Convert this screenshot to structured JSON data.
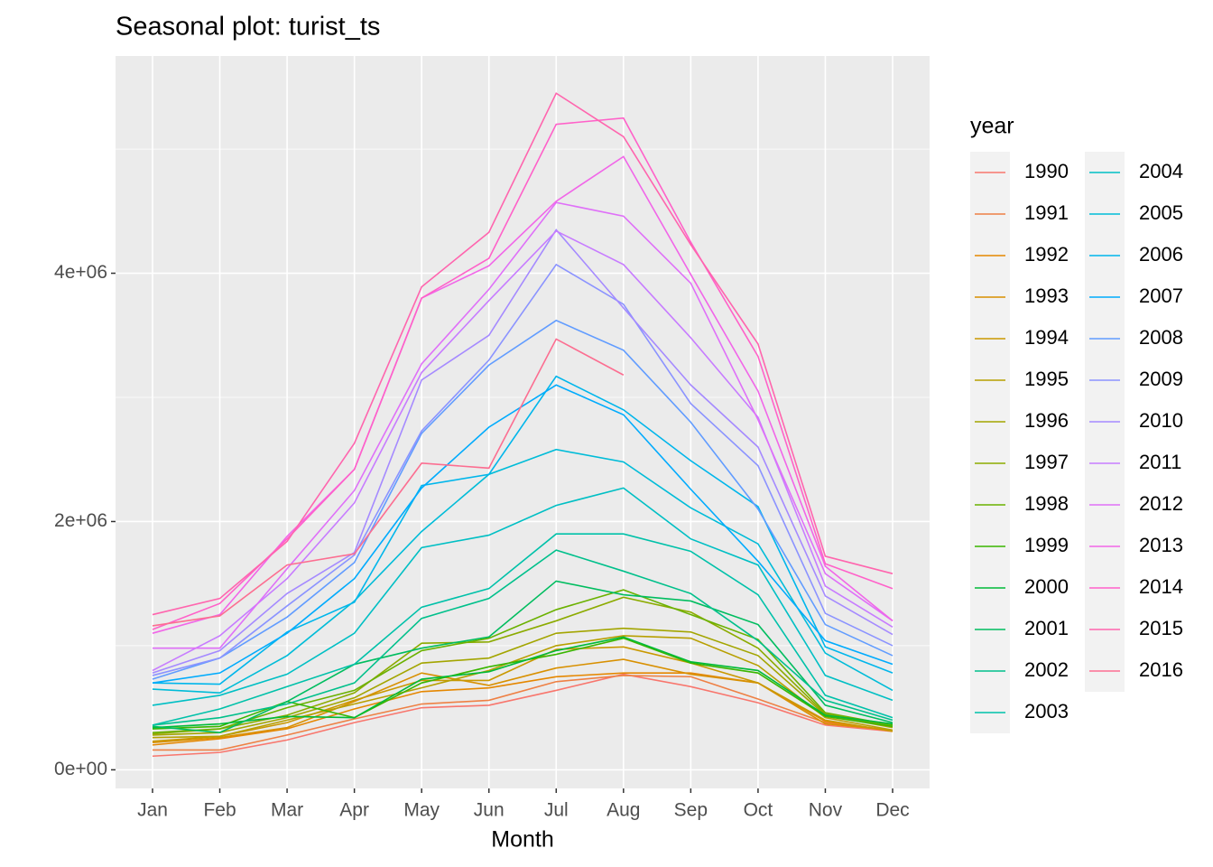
{
  "chart_data": {
    "type": "line",
    "title": "Seasonal plot: turist_ts",
    "x_label": "Month",
    "legend_title": "year",
    "legend": "right",
    "grid": true,
    "categories": [
      "Jan",
      "Feb",
      "Mar",
      "Apr",
      "May",
      "Jun",
      "Jul",
      "Aug",
      "Sep",
      "Oct",
      "Nov",
      "Dec"
    ],
    "ylim": [
      -150000,
      5750000
    ],
    "yticks": [
      {
        "value": 0,
        "label": "0e+00"
      },
      {
        "value": 2000000,
        "label": "2e+06"
      },
      {
        "value": 4000000,
        "label": "4e+06"
      }
    ],
    "yminor": [
      1000000,
      3000000,
      5000000
    ],
    "series": [
      {
        "name": "1990",
        "color": "#F8766D",
        "values": [
          110000.0,
          140000.0,
          240000.0,
          380000.0,
          500000.0,
          520000.0,
          640000.0,
          770000.0,
          670000.0,
          540000.0,
          360000.0,
          310000.0
        ]
      },
      {
        "name": "1991",
        "color": "#EE8044",
        "values": [
          160000.0,
          160000.0,
          280000.0,
          410000.0,
          530000.0,
          560000.0,
          710000.0,
          760000.0,
          750000.0,
          570000.0,
          380000.0,
          320000.0
        ]
      },
      {
        "name": "1992",
        "color": "#E58700",
        "values": [
          200000.0,
          250000.0,
          330000.0,
          490000.0,
          630000.0,
          660000.0,
          750000.0,
          780000.0,
          780000.0,
          700000.0,
          390000.0,
          310000.0
        ]
      },
      {
        "name": "1993",
        "color": "#D89000",
        "values": [
          220000.0,
          260000.0,
          340000.0,
          550000.0,
          780000.0,
          680000.0,
          820000.0,
          890000.0,
          770000.0,
          700000.0,
          370000.0,
          320000.0
        ]
      },
      {
        "name": "1994",
        "color": "#C99800",
        "values": [
          230000.0,
          270000.0,
          380000.0,
          560000.0,
          720000.0,
          720000.0,
          970000.0,
          990000.0,
          860000.0,
          700000.0,
          400000.0,
          310000.0
        ]
      },
      {
        "name": "1995",
        "color": "#B79F00",
        "values": [
          260000.0,
          270000.0,
          400000.0,
          530000.0,
          660000.0,
          800000.0,
          1000000.0,
          1080000.0,
          1060000.0,
          840000.0,
          420000.0,
          320000.0
        ]
      },
      {
        "name": "1996",
        "color": "#A3A500",
        "values": [
          280000.0,
          300000.0,
          420000.0,
          580000.0,
          860000.0,
          900000.0,
          1100000.0,
          1140000.0,
          1110000.0,
          920000.0,
          440000.0,
          340000.0
        ]
      },
      {
        "name": "1997",
        "color": "#8CAB00",
        "values": [
          290000.0,
          330000.0,
          440000.0,
          620000.0,
          1020000.0,
          1030000.0,
          1200000.0,
          1390000.0,
          1270000.0,
          980000.0,
          450000.0,
          350000.0
        ]
      },
      {
        "name": "1998",
        "color": "#6BB100",
        "values": [
          300000.0,
          330000.0,
          500000.0,
          640000.0,
          960000.0,
          1060000.0,
          1290000.0,
          1450000.0,
          1250000.0,
          1050000.0,
          460000.0,
          360000.0
        ]
      },
      {
        "name": "1999",
        "color": "#39B600",
        "values": [
          330000.0,
          350000.0,
          550000.0,
          420000.0,
          700000.0,
          830000.0,
          930000.0,
          1060000.0,
          860000.0,
          780000.0,
          430000.0,
          350000.0
        ]
      },
      {
        "name": "2000",
        "color": "#00BA38",
        "values": [
          340000.0,
          370000.0,
          430000.0,
          420000.0,
          730000.0,
          790000.0,
          960000.0,
          1070000.0,
          870000.0,
          800000.0,
          440000.0,
          370000.0
        ]
      },
      {
        "name": "2001",
        "color": "#00BD5F",
        "values": [
          350000.0,
          300000.0,
          550000.0,
          850000.0,
          980000.0,
          1070000.0,
          1520000.0,
          1410000.0,
          1360000.0,
          1170000.0,
          520000.0,
          380000.0
        ]
      },
      {
        "name": "2002",
        "color": "#00C08B",
        "values": [
          360000.0,
          420000.0,
          530000.0,
          700000.0,
          1220000.0,
          1380000.0,
          1770000.0,
          1600000.0,
          1420000.0,
          1040000.0,
          560000.0,
          400000.0
        ]
      },
      {
        "name": "2003",
        "color": "#00C1A9",
        "values": [
          360000.0,
          490000.0,
          670000.0,
          850000.0,
          1310000.0,
          1460000.0,
          1900000.0,
          1900000.0,
          1760000.0,
          1410000.0,
          600000.0,
          420000.0
        ]
      },
      {
        "name": "2004",
        "color": "#00BFC4",
        "values": [
          520000.0,
          600000.0,
          770000.0,
          1100000.0,
          1790000.0,
          1890000.0,
          2130000.0,
          2270000.0,
          1860000.0,
          1650000.0,
          760000.0,
          560000.0
        ]
      },
      {
        "name": "2005",
        "color": "#00BCD8",
        "values": [
          650000.0,
          620000.0,
          920000.0,
          1360000.0,
          1920000.0,
          2380000.0,
          2580000.0,
          2480000.0,
          2110000.0,
          1820000.0,
          940000.0,
          640000.0
        ]
      },
      {
        "name": "2006",
        "color": "#00B6EB",
        "values": [
          700000.0,
          690000.0,
          1110000.0,
          1350000.0,
          2290000.0,
          2380000.0,
          3170000.0,
          2900000.0,
          2490000.0,
          2120000.0,
          990000.0,
          780000.0
        ]
      },
      {
        "name": "2007",
        "color": "#00ABFD",
        "values": [
          700000.0,
          780000.0,
          1100000.0,
          1540000.0,
          2270000.0,
          2760000.0,
          3100000.0,
          2860000.0,
          2260000.0,
          1680000.0,
          1040000.0,
          850000.0
        ]
      },
      {
        "name": "2008",
        "color": "#619CFF",
        "values": [
          730000.0,
          900000.0,
          1230000.0,
          1670000.0,
          2710000.0,
          3260000.0,
          3620000.0,
          3380000.0,
          2800000.0,
          2100000.0,
          1170000.0,
          920000.0
        ]
      },
      {
        "name": "2009",
        "color": "#8B93FF",
        "values": [
          760000.0,
          900000.0,
          1320000.0,
          1730000.0,
          2730000.0,
          3300000.0,
          4070000.0,
          3750000.0,
          2950000.0,
          2450000.0,
          1260000.0,
          1000000.0
        ]
      },
      {
        "name": "2010",
        "color": "#A58AFF",
        "values": [
          780000.0,
          960000.0,
          1420000.0,
          1750000.0,
          3140000.0,
          3500000.0,
          4350000.0,
          3720000.0,
          3100000.0,
          2600000.0,
          1400000.0,
          1090000.0
        ]
      },
      {
        "name": "2011",
        "color": "#C77CFF",
        "values": [
          800000.0,
          1080000.0,
          1540000.0,
          2150000.0,
          3200000.0,
          3780000.0,
          4340000.0,
          4070000.0,
          3480000.0,
          2840000.0,
          1480000.0,
          1150000.0
        ]
      },
      {
        "name": "2012",
        "color": "#DF70F8",
        "values": [
          980000.0,
          980000.0,
          1620000.0,
          2250000.0,
          3270000.0,
          3870000.0,
          4570000.0,
          4460000.0,
          3920000.0,
          2820000.0,
          1580000.0,
          1200000.0
        ]
      },
      {
        "name": "2013",
        "color": "#F166E8",
        "values": [
          1100000.0,
          1250000.0,
          1880000.0,
          2420000.0,
          3800000.0,
          4060000.0,
          4580000.0,
          4940000.0,
          3990000.0,
          3050000.0,
          1640000.0,
          1200000.0
        ]
      },
      {
        "name": "2014",
        "color": "#FF61C9",
        "values": [
          1130000.0,
          1340000.0,
          1860000.0,
          2420000.0,
          3800000.0,
          4120000.0,
          5200000.0,
          5250000.0,
          4250000.0,
          3330000.0,
          1660000.0,
          1460000.0
        ]
      },
      {
        "name": "2015",
        "color": "#FF65AE",
        "values": [
          1250000.0,
          1380000.0,
          1840000.0,
          2630000.0,
          3890000.0,
          4330000.0,
          5450000.0,
          5100000.0,
          4230000.0,
          3430000.0,
          1720000.0,
          1580000.0
        ]
      },
      {
        "name": "2016",
        "color": "#FC6E91",
        "values": [
          1160000.0,
          1240000.0,
          1650000.0,
          1740000.0,
          2470000.0,
          2430000.0,
          3470000.0,
          3180000.0,
          null,
          null,
          null,
          null
        ]
      }
    ]
  }
}
